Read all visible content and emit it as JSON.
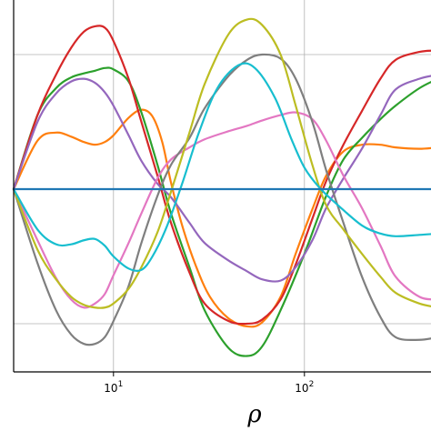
{
  "chart_data": {
    "type": "line",
    "x_scale": "log",
    "xlabel": "ρ",
    "ylabel": "",
    "grid": true,
    "xlim": [
      3,
      500
    ],
    "ylim": [
      -1.4,
      1.4
    ],
    "x_ticks": [
      {
        "value": 10,
        "base": "10",
        "exp": "1"
      },
      {
        "value": 100,
        "base": "10",
        "exp": "2"
      }
    ],
    "y_gridlines": [
      -1,
      0,
      1
    ],
    "series": [
      {
        "color": "#1f77b4",
        "points": [
          [
            3,
            0
          ],
          [
            500,
            0
          ]
        ]
      },
      {
        "color": "#ff7f0e",
        "points": [
          [
            3,
            0
          ],
          [
            4,
            0.36
          ],
          [
            5,
            0.42
          ],
          [
            6,
            0.39
          ],
          [
            7,
            0.35
          ],
          [
            8,
            0.33
          ],
          [
            9,
            0.35
          ],
          [
            10,
            0.4
          ],
          [
            12,
            0.53
          ],
          [
            14,
            0.59
          ],
          [
            16,
            0.54
          ],
          [
            18,
            0.35
          ],
          [
            20,
            0.05
          ],
          [
            23,
            -0.28
          ],
          [
            27,
            -0.57
          ],
          [
            32,
            -0.8
          ],
          [
            40,
            -0.96
          ],
          [
            50,
            -1.02
          ],
          [
            60,
            -0.99
          ],
          [
            75,
            -0.8
          ],
          [
            90,
            -0.48
          ],
          [
            110,
            -0.15
          ],
          [
            130,
            0.1
          ],
          [
            160,
            0.28
          ],
          [
            200,
            0.33
          ],
          [
            250,
            0.33
          ],
          [
            300,
            0.31
          ],
          [
            400,
            0.3
          ],
          [
            500,
            0.31
          ]
        ]
      },
      {
        "color": "#2ca02c",
        "points": [
          [
            3,
            0
          ],
          [
            4,
            0.55
          ],
          [
            5,
            0.75
          ],
          [
            6,
            0.83
          ],
          [
            7,
            0.86
          ],
          [
            8,
            0.88
          ],
          [
            9,
            0.9
          ],
          [
            10,
            0.89
          ],
          [
            12,
            0.8
          ],
          [
            14,
            0.57
          ],
          [
            17,
            0.18
          ],
          [
            20,
            -0.18
          ],
          [
            25,
            -0.58
          ],
          [
            30,
            -0.9
          ],
          [
            40,
            -1.18
          ],
          [
            50,
            -1.24
          ],
          [
            60,
            -1.17
          ],
          [
            75,
            -0.9
          ],
          [
            100,
            -0.48
          ],
          [
            130,
            -0.05
          ],
          [
            160,
            0.22
          ],
          [
            200,
            0.38
          ],
          [
            250,
            0.52
          ],
          [
            300,
            0.62
          ],
          [
            400,
            0.75
          ],
          [
            500,
            0.82
          ]
        ]
      },
      {
        "color": "#d62728",
        "points": [
          [
            3,
            0
          ],
          [
            4,
            0.55
          ],
          [
            5,
            0.85
          ],
          [
            6,
            1.05
          ],
          [
            7,
            1.17
          ],
          [
            8,
            1.21
          ],
          [
            9,
            1.2
          ],
          [
            10,
            1.1
          ],
          [
            12,
            0.82
          ],
          [
            14,
            0.5
          ],
          [
            17,
            0.1
          ],
          [
            20,
            -0.25
          ],
          [
            25,
            -0.62
          ],
          [
            30,
            -0.85
          ],
          [
            40,
            -0.98
          ],
          [
            50,
            -1.0
          ],
          [
            60,
            -0.97
          ],
          [
            75,
            -0.82
          ],
          [
            90,
            -0.56
          ],
          [
            110,
            -0.22
          ],
          [
            130,
            0.06
          ],
          [
            160,
            0.33
          ],
          [
            200,
            0.58
          ],
          [
            250,
            0.82
          ],
          [
            300,
            0.96
          ],
          [
            400,
            1.02
          ],
          [
            500,
            1.03
          ]
        ]
      },
      {
        "color": "#9467bd",
        "points": [
          [
            3,
            0
          ],
          [
            4,
            0.5
          ],
          [
            5,
            0.71
          ],
          [
            6,
            0.8
          ],
          [
            7,
            0.82
          ],
          [
            8,
            0.79
          ],
          [
            9,
            0.72
          ],
          [
            10,
            0.62
          ],
          [
            12,
            0.4
          ],
          [
            14,
            0.21
          ],
          [
            17,
            0.04
          ],
          [
            20,
            -0.06
          ],
          [
            25,
            -0.25
          ],
          [
            30,
            -0.4
          ],
          [
            40,
            -0.53
          ],
          [
            50,
            -0.61
          ],
          [
            60,
            -0.67
          ],
          [
            75,
            -0.68
          ],
          [
            90,
            -0.58
          ],
          [
            110,
            -0.38
          ],
          [
            130,
            -0.14
          ],
          [
            160,
            0.08
          ],
          [
            200,
            0.3
          ],
          [
            250,
            0.55
          ],
          [
            300,
            0.74
          ],
          [
            400,
            0.82
          ],
          [
            500,
            0.85
          ]
        ]
      },
      {
        "color": "#8c564b",
        "points": []
      },
      {
        "color": "#e377c2",
        "points": [
          [
            3,
            0
          ],
          [
            4,
            -0.38
          ],
          [
            5,
            -0.66
          ],
          [
            6,
            -0.82
          ],
          [
            7,
            -0.88
          ],
          [
            8,
            -0.85
          ],
          [
            9,
            -0.78
          ],
          [
            10,
            -0.64
          ],
          [
            12,
            -0.4
          ],
          [
            14,
            -0.18
          ],
          [
            17,
            0.08
          ],
          [
            20,
            0.22
          ],
          [
            25,
            0.31
          ],
          [
            30,
            0.37
          ],
          [
            40,
            0.43
          ],
          [
            50,
            0.47
          ],
          [
            60,
            0.51
          ],
          [
            75,
            0.55
          ],
          [
            90,
            0.57
          ],
          [
            110,
            0.52
          ],
          [
            130,
            0.36
          ],
          [
            160,
            0.1
          ],
          [
            200,
            -0.14
          ],
          [
            250,
            -0.42
          ],
          [
            300,
            -0.65
          ],
          [
            400,
            -0.8
          ],
          [
            500,
            -0.82
          ]
        ]
      },
      {
        "color": "#7f7f7f",
        "points": [
          [
            3,
            0
          ],
          [
            4,
            -0.55
          ],
          [
            5,
            -0.9
          ],
          [
            6,
            -1.08
          ],
          [
            7,
            -1.15
          ],
          [
            8,
            -1.15
          ],
          [
            9,
            -1.1
          ],
          [
            10,
            -0.98
          ],
          [
            12,
            -0.72
          ],
          [
            14,
            -0.4
          ],
          [
            17,
            -0.05
          ],
          [
            20,
            0.18
          ],
          [
            25,
            0.38
          ],
          [
            30,
            0.6
          ],
          [
            40,
            0.84
          ],
          [
            50,
            0.96
          ],
          [
            60,
            1.0
          ],
          [
            75,
            0.97
          ],
          [
            90,
            0.82
          ],
          [
            110,
            0.5
          ],
          [
            130,
            0.14
          ],
          [
            160,
            -0.25
          ],
          [
            200,
            -0.65
          ],
          [
            250,
            -0.95
          ],
          [
            300,
            -1.1
          ],
          [
            400,
            -1.12
          ],
          [
            500,
            -1.1
          ]
        ]
      },
      {
        "color": "#bcbd22",
        "points": [
          [
            3,
            0
          ],
          [
            4,
            -0.45
          ],
          [
            5,
            -0.67
          ],
          [
            6,
            -0.8
          ],
          [
            7,
            -0.86
          ],
          [
            8,
            -0.88
          ],
          [
            9,
            -0.88
          ],
          [
            10,
            -0.85
          ],
          [
            12,
            -0.74
          ],
          [
            14,
            -0.58
          ],
          [
            17,
            -0.32
          ],
          [
            20,
            -0.02
          ],
          [
            25,
            0.42
          ],
          [
            30,
            0.78
          ],
          [
            40,
            1.15
          ],
          [
            50,
            1.26
          ],
          [
            60,
            1.22
          ],
          [
            75,
            1.0
          ],
          [
            90,
            0.62
          ],
          [
            110,
            0.18
          ],
          [
            130,
            -0.12
          ],
          [
            160,
            -0.3
          ],
          [
            200,
            -0.48
          ],
          [
            250,
            -0.65
          ],
          [
            300,
            -0.77
          ],
          [
            400,
            -0.85
          ],
          [
            500,
            -0.88
          ]
        ]
      },
      {
        "color": "#17becf",
        "points": [
          [
            3,
            0
          ],
          [
            4,
            -0.3
          ],
          [
            5,
            -0.41
          ],
          [
            6,
            -0.41
          ],
          [
            7,
            -0.38
          ],
          [
            8,
            -0.37
          ],
          [
            9,
            -0.42
          ],
          [
            10,
            -0.5
          ],
          [
            12,
            -0.59
          ],
          [
            14,
            -0.6
          ],
          [
            16,
            -0.5
          ],
          [
            19,
            -0.28
          ],
          [
            23,
            0.05
          ],
          [
            28,
            0.42
          ],
          [
            35,
            0.75
          ],
          [
            45,
            0.92
          ],
          [
            55,
            0.9
          ],
          [
            70,
            0.68
          ],
          [
            85,
            0.38
          ],
          [
            100,
            0.16
          ],
          [
            120,
            0.01
          ],
          [
            150,
            -0.12
          ],
          [
            200,
            -0.27
          ],
          [
            250,
            -0.33
          ],
          [
            300,
            -0.35
          ],
          [
            400,
            -0.34
          ],
          [
            500,
            -0.33
          ]
        ]
      }
    ]
  }
}
